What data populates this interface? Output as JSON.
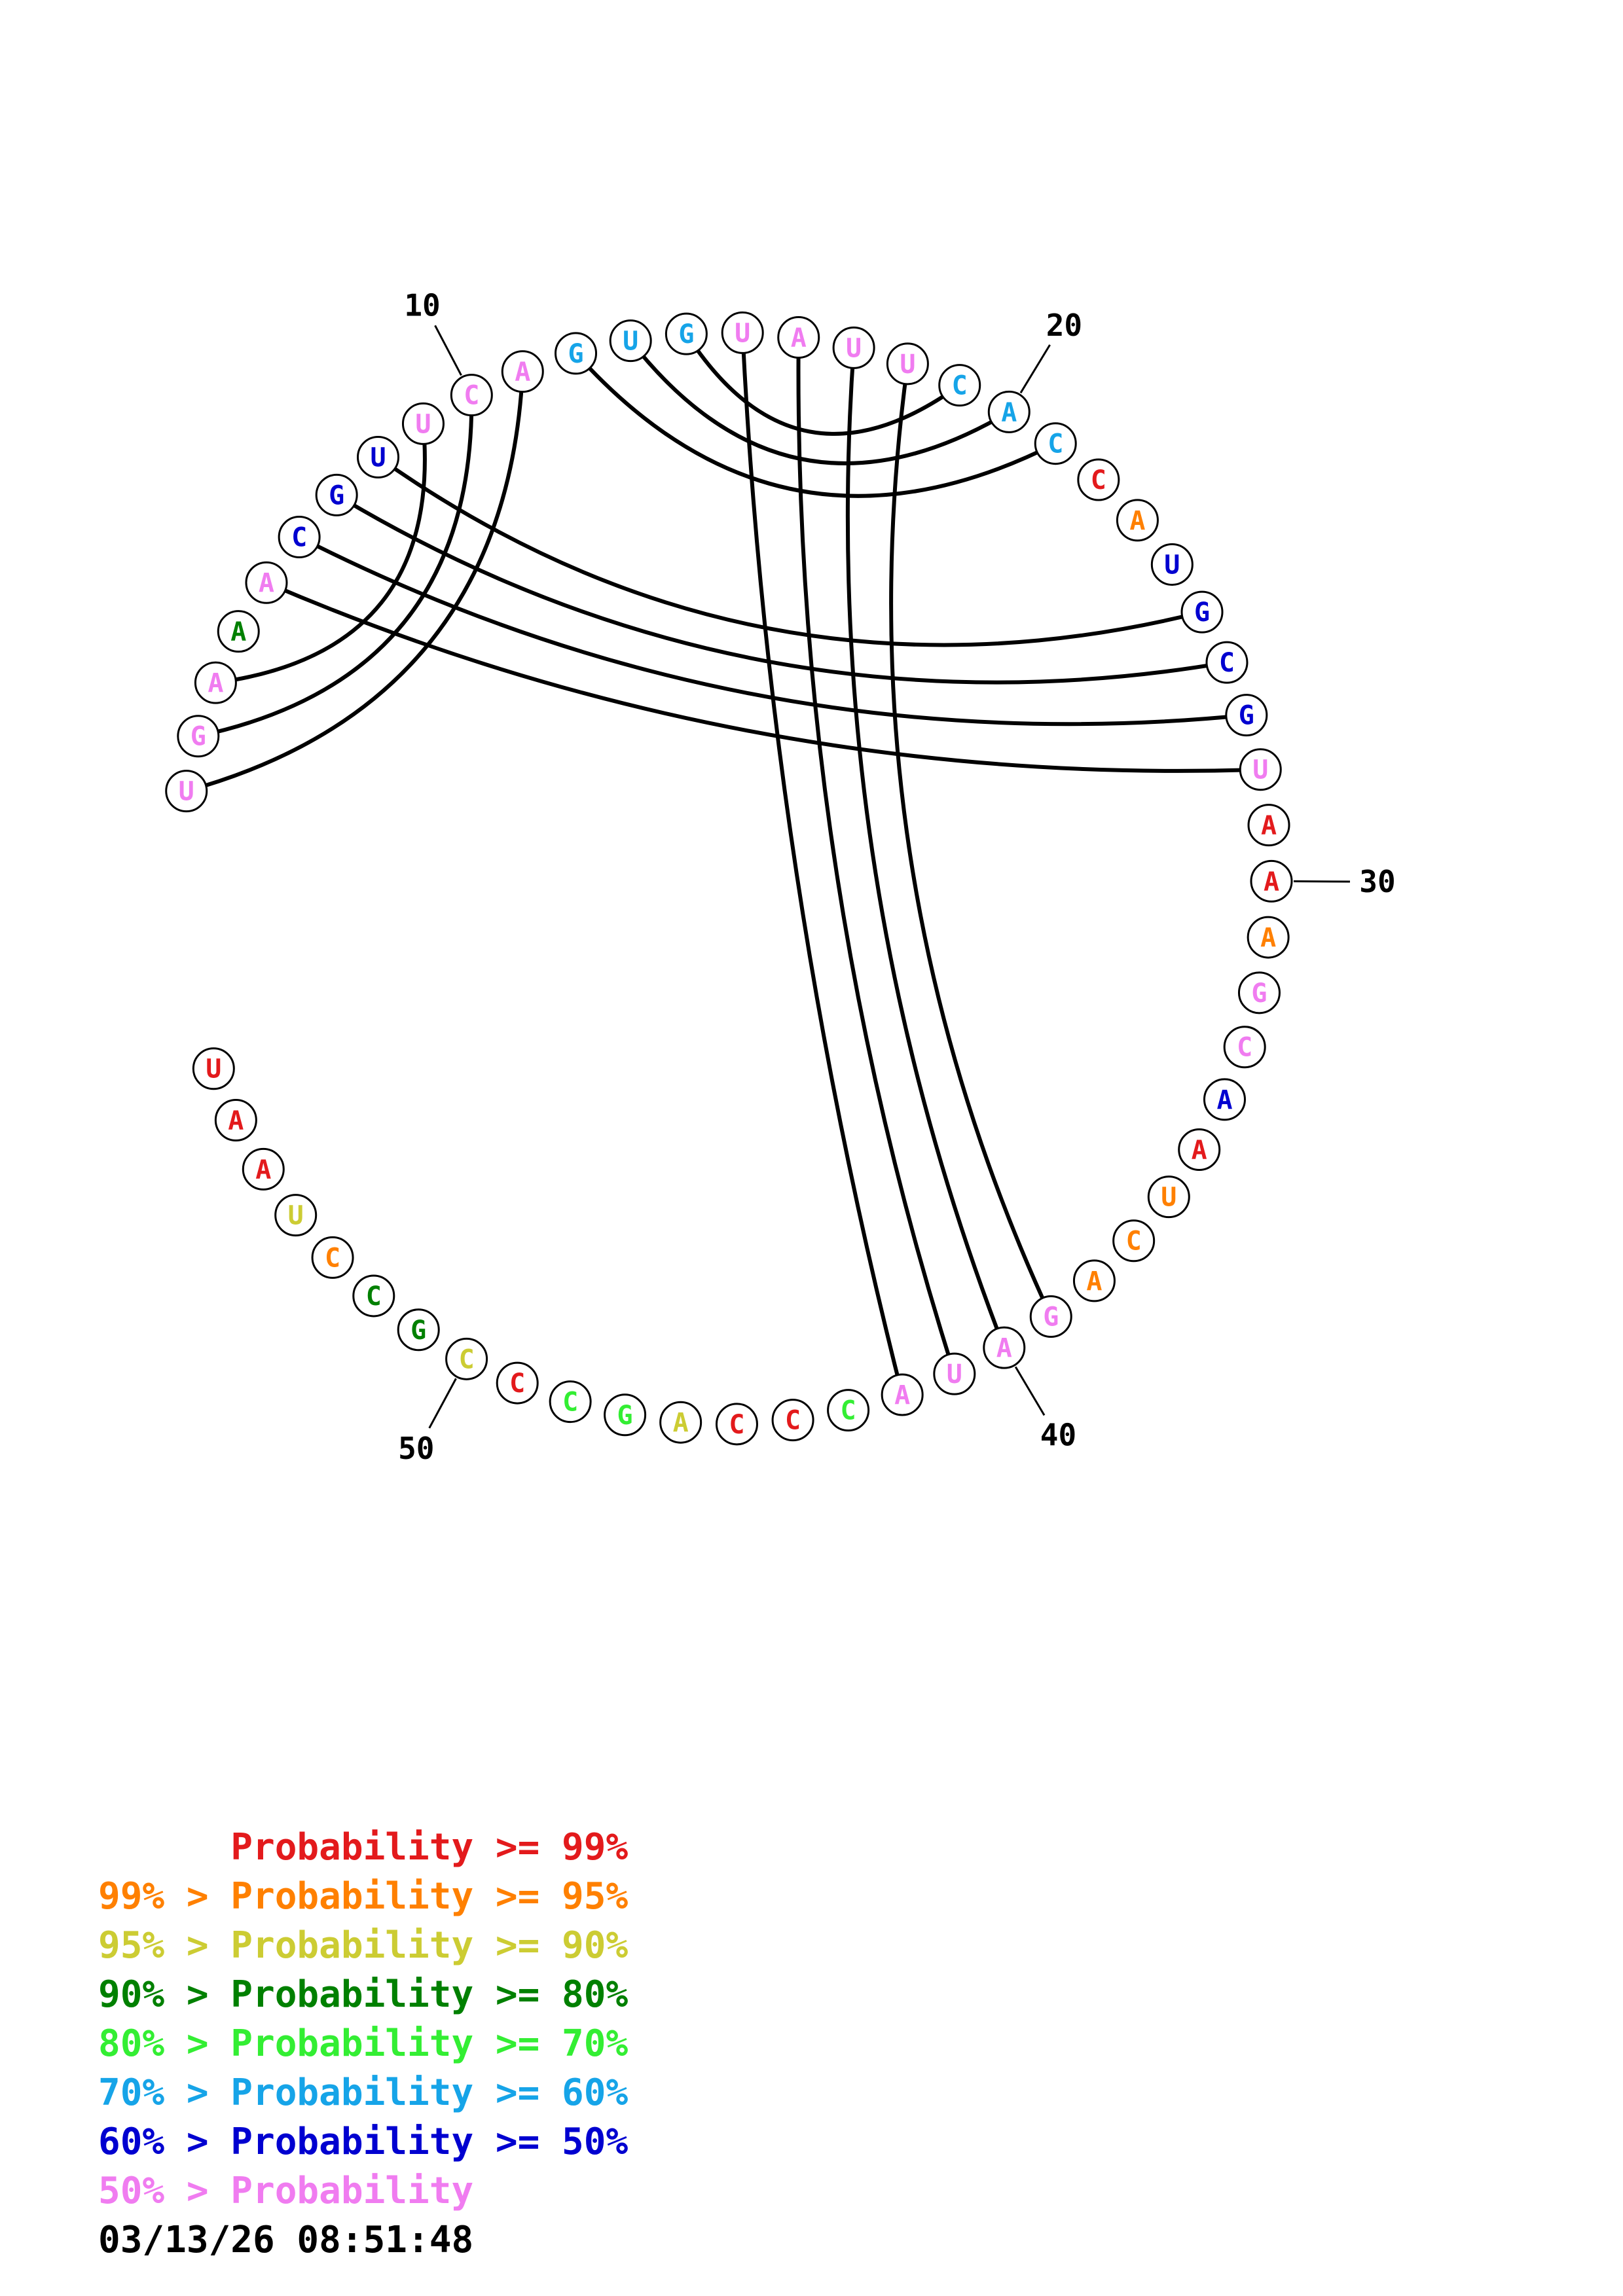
{
  "colors": {
    "red": "#e31a1c",
    "orange": "#ff8000",
    "yellow": "#cccc33",
    "dkgreen": "#008000",
    "green": "#33ee33",
    "cyan": "#16a4e8",
    "blue": "#0000d0",
    "pink": "#f07cf0"
  },
  "nucleotides": [
    {
      "n": 1,
      "base": "U",
      "c": "pink"
    },
    {
      "n": 2,
      "base": "G",
      "c": "pink"
    },
    {
      "n": 3,
      "base": "A",
      "c": "pink"
    },
    {
      "n": 4,
      "base": "A",
      "c": "dkgreen"
    },
    {
      "n": 5,
      "base": "A",
      "c": "pink"
    },
    {
      "n": 6,
      "base": "C",
      "c": "blue"
    },
    {
      "n": 7,
      "base": "G",
      "c": "blue"
    },
    {
      "n": 8,
      "base": "U",
      "c": "blue"
    },
    {
      "n": 9,
      "base": "U",
      "c": "pink"
    },
    {
      "n": 10,
      "base": "C",
      "c": "pink"
    },
    {
      "n": 11,
      "base": "A",
      "c": "pink"
    },
    {
      "n": 12,
      "base": "G",
      "c": "cyan"
    },
    {
      "n": 13,
      "base": "U",
      "c": "cyan"
    },
    {
      "n": 14,
      "base": "G",
      "c": "cyan"
    },
    {
      "n": 15,
      "base": "U",
      "c": "pink"
    },
    {
      "n": 16,
      "base": "A",
      "c": "pink"
    },
    {
      "n": 17,
      "base": "U",
      "c": "pink"
    },
    {
      "n": 18,
      "base": "U",
      "c": "pink"
    },
    {
      "n": 19,
      "base": "C",
      "c": "cyan"
    },
    {
      "n": 20,
      "base": "A",
      "c": "cyan"
    },
    {
      "n": 21,
      "base": "C",
      "c": "cyan"
    },
    {
      "n": 22,
      "base": "C",
      "c": "red"
    },
    {
      "n": 23,
      "base": "A",
      "c": "orange"
    },
    {
      "n": 24,
      "base": "U",
      "c": "blue"
    },
    {
      "n": 25,
      "base": "G",
      "c": "blue"
    },
    {
      "n": 26,
      "base": "C",
      "c": "blue"
    },
    {
      "n": 27,
      "base": "G",
      "c": "blue"
    },
    {
      "n": 28,
      "base": "U",
      "c": "pink"
    },
    {
      "n": 29,
      "base": "A",
      "c": "red"
    },
    {
      "n": 30,
      "base": "A",
      "c": "red"
    },
    {
      "n": 31,
      "base": "A",
      "c": "orange"
    },
    {
      "n": 32,
      "base": "G",
      "c": "pink"
    },
    {
      "n": 33,
      "base": "C",
      "c": "pink"
    },
    {
      "n": 34,
      "base": "A",
      "c": "blue"
    },
    {
      "n": 35,
      "base": "A",
      "c": "red"
    },
    {
      "n": 36,
      "base": "U",
      "c": "orange"
    },
    {
      "n": 37,
      "base": "C",
      "c": "orange"
    },
    {
      "n": 38,
      "base": "A",
      "c": "orange"
    },
    {
      "n": 39,
      "base": "G",
      "c": "pink"
    },
    {
      "n": 40,
      "base": "A",
      "c": "pink"
    },
    {
      "n": 41,
      "base": "U",
      "c": "pink"
    },
    {
      "n": 42,
      "base": "A",
      "c": "pink"
    },
    {
      "n": 43,
      "base": "C",
      "c": "green"
    },
    {
      "n": 44,
      "base": "C",
      "c": "red"
    },
    {
      "n": 45,
      "base": "C",
      "c": "red"
    },
    {
      "n": 46,
      "base": "A",
      "c": "yellow"
    },
    {
      "n": 47,
      "base": "G",
      "c": "green"
    },
    {
      "n": 48,
      "base": "C",
      "c": "green"
    },
    {
      "n": 49,
      "base": "C",
      "c": "red"
    },
    {
      "n": 50,
      "base": "C",
      "c": "yellow"
    },
    {
      "n": 51,
      "base": "G",
      "c": "dkgreen"
    },
    {
      "n": 52,
      "base": "C",
      "c": "dkgreen"
    },
    {
      "n": 53,
      "base": "C",
      "c": "orange"
    },
    {
      "n": 54,
      "base": "U",
      "c": "yellow"
    },
    {
      "n": 55,
      "base": "A",
      "c": "red"
    },
    {
      "n": 56,
      "base": "A",
      "c": "red"
    },
    {
      "n": 57,
      "base": "U",
      "c": "red"
    }
  ],
  "pairs": [
    [
      1,
      11
    ],
    [
      2,
      10
    ],
    [
      3,
      9
    ],
    [
      5,
      28
    ],
    [
      6,
      27
    ],
    [
      7,
      26
    ],
    [
      8,
      25
    ],
    [
      12,
      21
    ],
    [
      13,
      20
    ],
    [
      14,
      19
    ],
    [
      15,
      42
    ],
    [
      16,
      41
    ],
    [
      17,
      40
    ],
    [
      18,
      39
    ]
  ],
  "numbers": [
    {
      "n": 10,
      "label": "10"
    },
    {
      "n": 20,
      "label": "20"
    },
    {
      "n": 30,
      "label": "30"
    },
    {
      "n": 40,
      "label": "40"
    },
    {
      "n": 50,
      "label": "50"
    }
  ],
  "legend": [
    {
      "text": "      Probability >= 99%",
      "c": "red"
    },
    {
      "text": "99% > Probability >= 95%",
      "c": "orange"
    },
    {
      "text": "95% > Probability >= 90%",
      "c": "yellow"
    },
    {
      "text": "90% > Probability >= 80%",
      "c": "dkgreen"
    },
    {
      "text": "80% > Probability >= 70%",
      "c": "green"
    },
    {
      "text": "70% > Probability >= 60%",
      "c": "cyan"
    },
    {
      "text": "60% > Probability >= 50%",
      "c": "blue"
    },
    {
      "text": "50% > Probability",
      "c": "pink"
    }
  ],
  "timestamp": "03/13/26 08:51:48"
}
